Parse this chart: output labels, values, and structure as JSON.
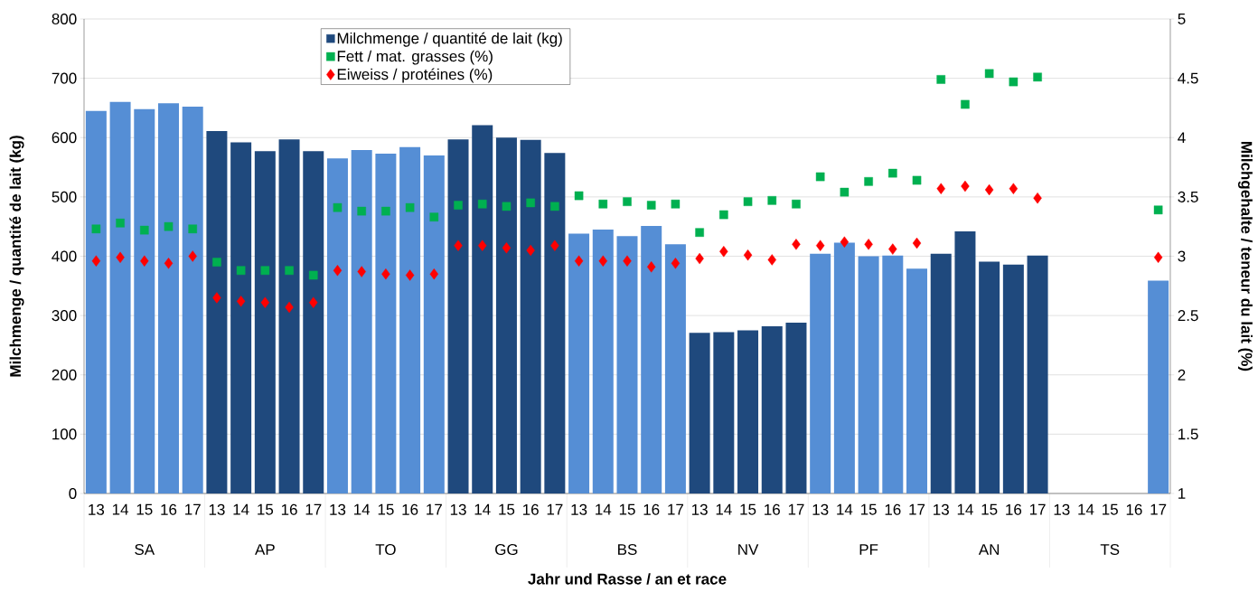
{
  "chart_data": {
    "type": "bar",
    "categories": [
      "13",
      "14",
      "15",
      "16",
      "17",
      "13",
      "14",
      "15",
      "16",
      "17",
      "13",
      "14",
      "15",
      "16",
      "17",
      "13",
      "14",
      "15",
      "16",
      "17",
      "13",
      "14",
      "15",
      "16",
      "17",
      "13",
      "14",
      "15",
      "16",
      "17",
      "13",
      "14",
      "15",
      "16",
      "17",
      "13",
      "14",
      "15",
      "16",
      "17",
      "13",
      "14",
      "15",
      "16",
      "17"
    ],
    "series": [
      {
        "name": "Milchmenge / quantité de lait (kg)",
        "color": "#1f497d",
        "colors": [
          "#558ed5",
          "#558ed5",
          "#558ed5",
          "#558ed5",
          "#558ed5",
          "#1f497d",
          "#1f497d",
          "#1f497d",
          "#1f497d",
          "#1f497d",
          "#558ed5",
          "#558ed5",
          "#558ed5",
          "#558ed5",
          "#558ed5",
          "#1f497d",
          "#1f497d",
          "#1f497d",
          "#1f497d",
          "#1f497d",
          "#558ed5",
          "#558ed5",
          "#558ed5",
          "#558ed5",
          "#558ed5",
          "#1f497d",
          "#1f497d",
          "#1f497d",
          "#1f497d",
          "#1f497d",
          "#558ed5",
          "#558ed5",
          "#558ed5",
          "#558ed5",
          "#558ed5",
          "#1f497d",
          "#1f497d",
          "#1f497d",
          "#1f497d",
          "#1f497d",
          "#558ed5",
          "#558ed5",
          "#558ed5",
          "#558ed5",
          "#558ed5"
        ],
        "values": [
          645,
          660,
          648,
          658,
          652,
          611,
          592,
          577,
          597,
          577,
          565,
          579,
          573,
          584,
          570,
          597,
          621,
          600,
          596,
          574,
          438,
          445,
          434,
          451,
          420,
          271,
          272,
          275,
          282,
          288,
          404,
          423,
          400,
          401,
          379,
          404,
          442,
          391,
          386,
          401,
          null,
          null,
          null,
          null,
          359
        ]
      },
      {
        "name": "Fett / mat. grasses (%)",
        "type": "scatter",
        "axis": "y2",
        "marker": "square",
        "color": "#00b050",
        "values": [
          3.23,
          3.28,
          3.22,
          3.25,
          3.23,
          2.95,
          2.88,
          2.88,
          2.88,
          2.84,
          3.41,
          3.38,
          3.38,
          3.41,
          3.33,
          3.43,
          3.44,
          3.42,
          3.45,
          3.42,
          3.51,
          3.44,
          3.46,
          3.43,
          3.44,
          3.2,
          3.35,
          3.46,
          3.47,
          3.44,
          3.67,
          3.54,
          3.63,
          3.7,
          3.64,
          4.49,
          4.28,
          4.54,
          4.47,
          4.51,
          null,
          null,
          null,
          null,
          3.39
        ]
      },
      {
        "name": "Eiweiss / protéines (%)",
        "type": "scatter",
        "axis": "y2",
        "marker": "diamond",
        "color": "#ff0000",
        "values": [
          2.96,
          2.99,
          2.96,
          2.94,
          3.0,
          2.65,
          2.62,
          2.61,
          2.57,
          2.61,
          2.88,
          2.87,
          2.85,
          2.84,
          2.85,
          3.09,
          3.09,
          3.07,
          3.05,
          3.09,
          2.96,
          2.96,
          2.96,
          2.91,
          2.94,
          2.98,
          3.04,
          3.01,
          2.97,
          3.1,
          3.09,
          3.12,
          3.1,
          3.06,
          3.11,
          3.57,
          3.59,
          3.56,
          3.57,
          3.49,
          null,
          null,
          null,
          null,
          2.99
        ]
      }
    ],
    "ylim": [
      0,
      800
    ],
    "yticks": [
      0,
      100,
      200,
      300,
      400,
      500,
      600,
      700,
      800
    ],
    "y2lim": [
      1,
      5
    ],
    "y2ticks": [
      1,
      1.5,
      2,
      2.5,
      3,
      3.5,
      4,
      4.5,
      5
    ],
    "xlabel": "Jahr und Rasse / an et race",
    "ylabel": "Milchmenge / quantité de lait (kg)",
    "y2label": "Milchgehalte / teneur du lait (%)",
    "annotations": [
      "SA",
      "AP",
      "TO",
      "GG",
      "BS",
      "NV",
      "PF",
      "AN",
      "TS"
    ],
    "grid": "y",
    "legend": "top"
  }
}
